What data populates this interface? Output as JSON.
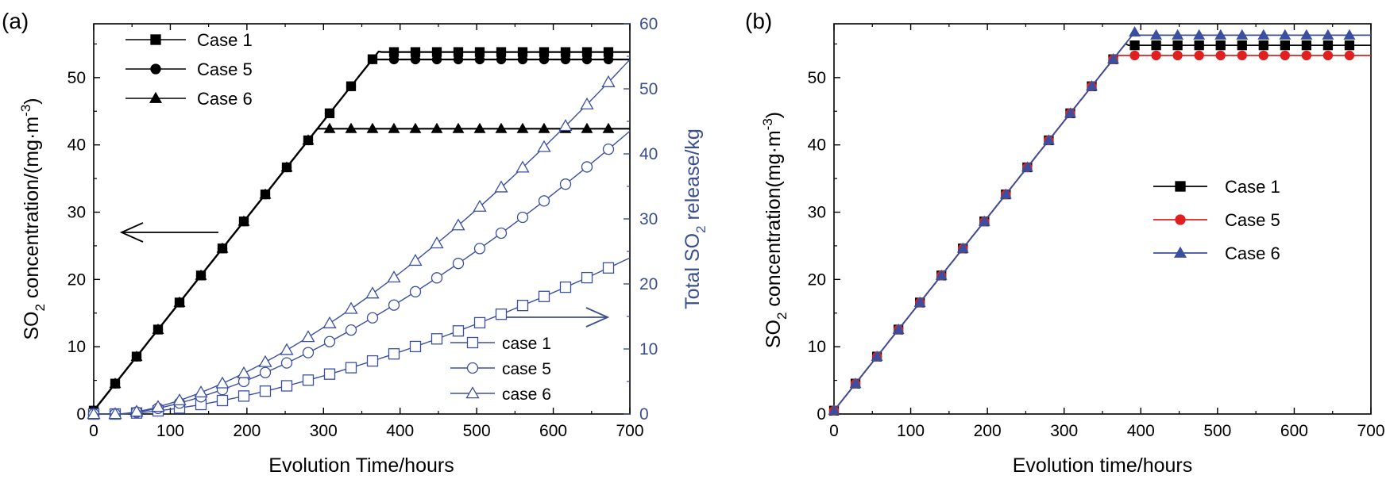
{
  "colors": {
    "axis": "#000000",
    "right_axis": "#3b4f8f",
    "black": "#000000",
    "red": "#e02020",
    "blue": "#3a4fa0"
  },
  "chart_data": [
    {
      "panel_label": "(a)",
      "type": "line",
      "xlabel": "Evolution Time/hours",
      "ylabel_left": {
        "pre": "SO",
        "sub": "2",
        "post": " concentration/(mg·m",
        "sup": "-3",
        "end": ")"
      },
      "ylabel_right": {
        "pre": "Total SO",
        "sub": "2",
        "post": " release/kg"
      },
      "xlim": [
        0,
        700
      ],
      "ylim_left": [
        0,
        58
      ],
      "ylim_right": [
        0,
        60
      ],
      "x_ticks": [
        "0",
        "100",
        "200",
        "300",
        "400",
        "500",
        "600",
        "700"
      ],
      "y_left_ticks": [
        "0",
        "10",
        "20",
        "30",
        "40",
        "50"
      ],
      "y_right_ticks": [
        "0",
        "10",
        "20",
        "30",
        "40",
        "50",
        "60"
      ],
      "arrow_left_annotation": "points to left axis",
      "arrow_right_annotation": "points to right axis",
      "series": [
        {
          "name": "Case 1",
          "axis": "left",
          "marker": "square-filled",
          "plateau": 53.8,
          "rise_end": 390
        },
        {
          "name": "Case 5",
          "axis": "left",
          "marker": "circle-filled",
          "plateau": 52.7,
          "rise_end": 390
        },
        {
          "name": "Case 6",
          "axis": "left",
          "marker": "triangle-filled",
          "plateau": 42.4,
          "rise_end": 310
        },
        {
          "name": "case 1",
          "axis": "right",
          "marker": "square-open",
          "final_value": 24.0
        },
        {
          "name": "case 5",
          "axis": "right",
          "marker": "circle-open",
          "final_value": 43.5
        },
        {
          "name": "case 6",
          "axis": "right",
          "marker": "triangle-open",
          "final_value": 54.5
        }
      ],
      "legend_left": [
        "Case 1",
        "Case 5",
        "Case 6"
      ],
      "legend_right": [
        "case 1",
        "case 5",
        "case 6"
      ]
    },
    {
      "panel_label": "(b)",
      "type": "line",
      "xlabel": "Evolution time/hours",
      "ylabel": {
        "pre": "SO",
        "sub": "2",
        "post": " concentration(mg·m",
        "sup": "-3",
        "end": ")"
      },
      "xlim": [
        0,
        700
      ],
      "ylim": [
        0,
        58
      ],
      "x_ticks": [
        "0",
        "100",
        "200",
        "300",
        "400",
        "500",
        "600",
        "700"
      ],
      "y_ticks": [
        "0",
        "10",
        "20",
        "30",
        "40",
        "50"
      ],
      "series": [
        {
          "name": "Case 1",
          "color": "#000000",
          "marker": "square-filled",
          "plateau": 54.8
        },
        {
          "name": "Case 5",
          "color": "#e02020",
          "marker": "circle-filled",
          "plateau": 53.3
        },
        {
          "name": "Case 6",
          "color": "#3a4fa0",
          "marker": "triangle-filled",
          "plateau": 56.3
        }
      ],
      "legend": [
        "Case 1",
        "Case 5",
        "Case 6"
      ]
    }
  ]
}
